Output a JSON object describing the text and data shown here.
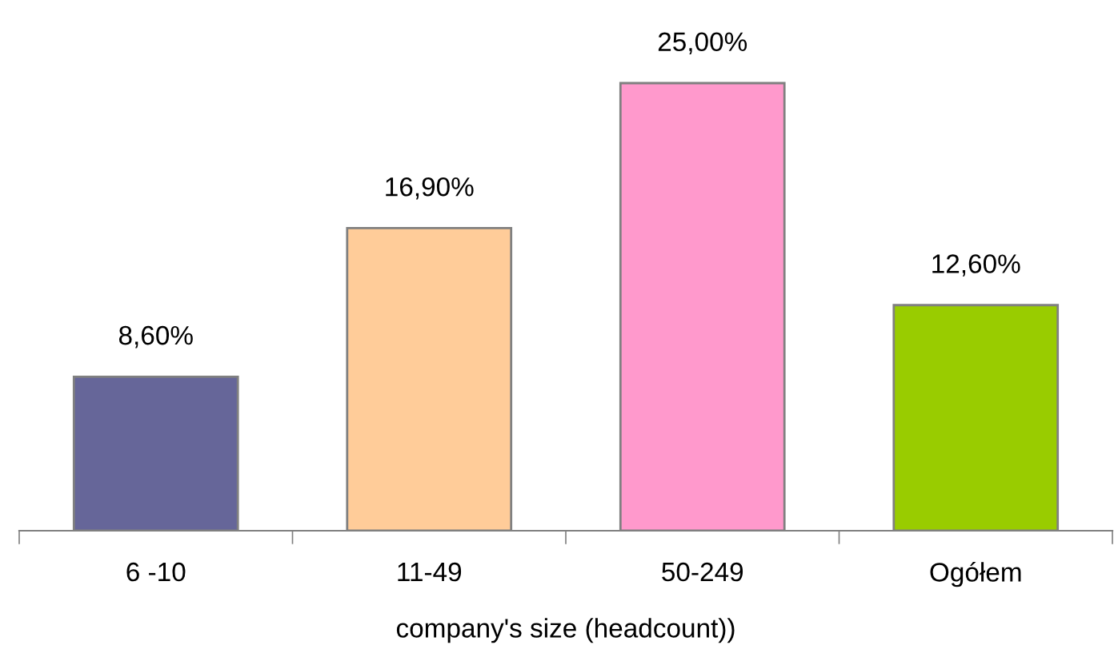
{
  "chart_data": {
    "type": "bar",
    "xlabel": "company's size (headcount))",
    "categories": [
      "6 -10",
      "11-49",
      "50-249",
      "Ogółem"
    ],
    "values": [
      8.6,
      16.9,
      25.0,
      12.6
    ],
    "colors": [
      "#666699",
      "#ffcc99",
      "#ff99cc",
      "#99cc00"
    ],
    "value_labels": [
      "8,60%",
      "16,90%",
      "25,00%",
      "12,60%"
    ],
    "grid": false,
    "legend": false
  }
}
